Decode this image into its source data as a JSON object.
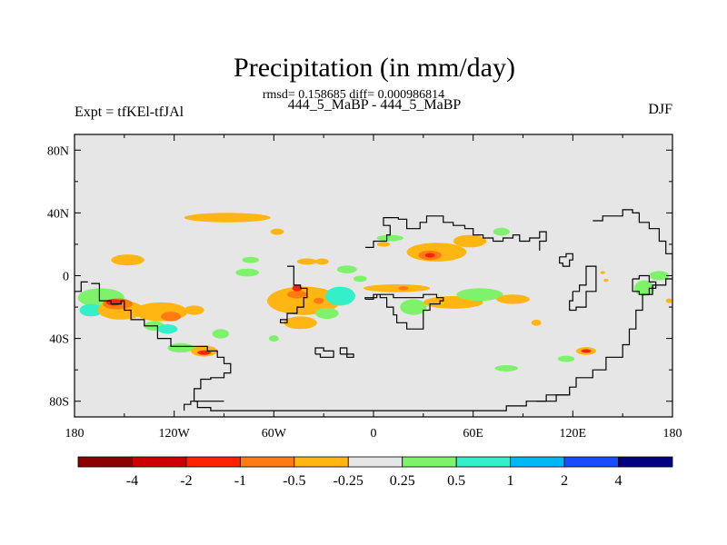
{
  "chart_data": {
    "type": "heatmap",
    "title": "Precipitation (in mm/day)",
    "stats_text": "rmsd= 0.158685 diff= 0.000986814",
    "subtitle": "444_5_MaBP - 444_5_MaBP",
    "left_label": "Expt = tfKEl-tfJAl",
    "right_label": "DJF",
    "xlim": [
      -180,
      180
    ],
    "ylim": [
      -90,
      90
    ],
    "x_ticks": [
      {
        "value": -180,
        "label": "180"
      },
      {
        "value": -120,
        "label": "120W"
      },
      {
        "value": -60,
        "label": "60W"
      },
      {
        "value": 0,
        "label": "0"
      },
      {
        "value": 60,
        "label": "60E"
      },
      {
        "value": 120,
        "label": "120E"
      },
      {
        "value": 180,
        "label": "180"
      }
    ],
    "y_ticks": [
      {
        "value": 80,
        "label": "80N"
      },
      {
        "value": 40,
        "label": "40N"
      },
      {
        "value": 0,
        "label": "0"
      },
      {
        "value": -40,
        "label": "40S"
      },
      {
        "value": -80,
        "label": "80S"
      }
    ],
    "colorbar": {
      "colors": [
        "#8b0000",
        "#cc0000",
        "#ff2200",
        "#ff7a10",
        "#ffb612",
        "#e6e6e6",
        "#7ff26b",
        "#33f0c8",
        "#00b8f5",
        "#1a4cff",
        "#000080"
      ],
      "labels": [
        "-4",
        "-2",
        "-1",
        "-0.5",
        "-0.25",
        "0.25",
        "0.5",
        "1",
        "2",
        "4"
      ]
    },
    "coastlines": [
      [
        [
          -170,
          -5
        ],
        [
          -165,
          -10
        ],
        [
          -165,
          -16
        ],
        [
          -158,
          -18
        ],
        [
          -152,
          -16
        ],
        [
          -150,
          -22
        ],
        [
          -146,
          -28
        ],
        [
          -138,
          -32
        ],
        [
          -130,
          -40
        ],
        [
          -122,
          -45
        ],
        [
          -112,
          -45
        ],
        [
          -104,
          -45
        ],
        [
          -100,
          -48
        ],
        [
          -94,
          -52
        ],
        [
          -90,
          -56
        ],
        [
          -86,
          -58
        ],
        [
          -86,
          -62
        ],
        [
          -90,
          -65
        ],
        [
          -98,
          -66
        ],
        [
          -104,
          -72
        ],
        [
          -108,
          -74
        ],
        [
          -108,
          -80
        ],
        [
          -106,
          -84
        ],
        [
          -98,
          -86
        ],
        [
          -80,
          -86
        ],
        [
          -60,
          -86
        ],
        [
          -30,
          -86
        ],
        [
          0,
          -86
        ],
        [
          30,
          -86
        ],
        [
          60,
          -86
        ],
        [
          80,
          -83
        ],
        [
          92,
          -80
        ],
        [
          104,
          -76
        ],
        [
          118,
          -71
        ],
        [
          122,
          -65
        ],
        [
          132,
          -60
        ],
        [
          140,
          -52
        ],
        [
          150,
          -44
        ],
        [
          154,
          -34
        ],
        [
          158,
          -22
        ],
        [
          162,
          -12
        ],
        [
          168,
          -6
        ],
        [
          176,
          -2
        ],
        [
          180,
          -1
        ]
      ],
      [
        [
          -52,
          6
        ],
        [
          -48,
          2
        ],
        [
          -48,
          -6
        ],
        [
          -44,
          -8
        ],
        [
          -40,
          -8
        ],
        [
          -40,
          -14
        ],
        [
          -42,
          -20
        ],
        [
          -46,
          -24
        ],
        [
          -52,
          -28
        ],
        [
          -56,
          -30
        ],
        [
          -52,
          -28
        ]
      ],
      [
        [
          -5,
          -15
        ],
        [
          0,
          -12
        ],
        [
          4,
          -14
        ],
        [
          8,
          -20
        ],
        [
          12,
          -25
        ],
        [
          14,
          -30
        ],
        [
          20,
          -34
        ],
        [
          26,
          -34
        ],
        [
          30,
          -30
        ],
        [
          30,
          -22
        ],
        [
          34,
          -18
        ],
        [
          40,
          -16
        ],
        [
          42,
          -14
        ],
        [
          38,
          -12
        ],
        [
          30,
          -14
        ],
        [
          22,
          -14
        ],
        [
          12,
          -12
        ],
        [
          2,
          -14
        ],
        [
          -5,
          -15
        ]
      ],
      [
        [
          -5,
          18
        ],
        [
          0,
          22
        ],
        [
          8,
          26
        ],
        [
          10,
          32
        ],
        [
          6,
          37
        ],
        [
          15,
          36
        ],
        [
          20,
          30
        ],
        [
          28,
          34
        ],
        [
          32,
          38
        ],
        [
          38,
          38
        ],
        [
          42,
          34
        ],
        [
          48,
          32
        ],
        [
          55,
          30
        ],
        [
          60,
          26
        ],
        [
          66,
          24
        ],
        [
          72,
          22
        ],
        [
          78,
          24
        ],
        [
          84,
          26
        ],
        [
          88,
          22
        ],
        [
          94,
          24
        ],
        [
          100,
          28
        ],
        [
          104,
          26
        ],
        [
          104,
          22
        ],
        [
          100,
          16
        ]
      ],
      [
        [
          -35,
          -50
        ],
        [
          -32,
          -52
        ],
        [
          -26,
          -52
        ],
        [
          -24,
          -48
        ],
        [
          -30,
          -46
        ],
        [
          -35,
          -50
        ]
      ],
      [
        [
          -20,
          -50
        ],
        [
          -16,
          -52
        ],
        [
          -12,
          -50
        ],
        [
          -16,
          -46
        ],
        [
          -20,
          -50
        ]
      ],
      [
        [
          120,
          -10
        ],
        [
          124,
          -6
        ],
        [
          128,
          0
        ],
        [
          128,
          6
        ],
        [
          132,
          6
        ],
        [
          134,
          0
        ],
        [
          134,
          -10
        ],
        [
          128,
          -20
        ],
        [
          122,
          -22
        ],
        [
          118,
          -16
        ],
        [
          120,
          -10
        ]
      ],
      [
        [
          132,
          35
        ],
        [
          138,
          38
        ],
        [
          146,
          38
        ],
        [
          150,
          42
        ],
        [
          156,
          40
        ],
        [
          160,
          34
        ],
        [
          166,
          30
        ],
        [
          172,
          22
        ],
        [
          176,
          14
        ],
        [
          180,
          10
        ]
      ],
      [
        [
          112,
          12
        ],
        [
          116,
          14
        ],
        [
          120,
          10
        ],
        [
          118,
          6
        ],
        [
          114,
          8
        ],
        [
          112,
          12
        ]
      ],
      [
        [
          156,
          -2
        ],
        [
          160,
          0
        ],
        [
          166,
          -4
        ],
        [
          170,
          -8
        ],
        [
          166,
          -12
        ],
        [
          160,
          -10
        ],
        [
          156,
          -6
        ],
        [
          156,
          -2
        ]
      ],
      [
        [
          -90,
          -80
        ],
        [
          -100,
          -80
        ],
        [
          -110,
          -82
        ],
        [
          -114,
          -86
        ]
      ],
      [
        [
          -172,
          -4
        ],
        [
          -176,
          -10
        ],
        [
          -180,
          -12
        ]
      ],
      [
        [
          98,
          -80
        ],
        [
          110,
          -76
        ],
        [
          118,
          -74
        ]
      ]
    ],
    "regions": [
      {
        "c": 4,
        "x": -148,
        "y": 10,
        "rx": 10,
        "ry": 3.5
      },
      {
        "c": 6,
        "x": -74,
        "y": 10,
        "rx": 5,
        "ry": 2
      },
      {
        "c": 6,
        "x": -76,
        "y": 2,
        "rx": 7,
        "ry": 2.5
      },
      {
        "c": 4,
        "x": -58,
        "y": 28,
        "rx": 4,
        "ry": 2
      },
      {
        "c": 4,
        "x": -88,
        "y": 37,
        "rx": 26,
        "ry": 3
      },
      {
        "c": 4,
        "x": -40,
        "y": 9,
        "rx": 6,
        "ry": 2
      },
      {
        "c": 4,
        "x": -31,
        "y": 9,
        "rx": 4,
        "ry": 2
      },
      {
        "c": 6,
        "x": -16,
        "y": 4,
        "rx": 6,
        "ry": 2.5
      },
      {
        "c": 6,
        "x": -8,
        "y": -2,
        "rx": 4,
        "ry": 2
      },
      {
        "c": 6,
        "x": -164,
        "y": -14,
        "rx": 14,
        "ry": 6
      },
      {
        "c": 7,
        "x": -170,
        "y": -22,
        "rx": 7,
        "ry": 4
      },
      {
        "c": 4,
        "x": -152,
        "y": -22,
        "rx": 14,
        "ry": 6
      },
      {
        "c": 3,
        "x": -154,
        "y": -18,
        "rx": 9,
        "ry": 3.5
      },
      {
        "c": 2,
        "x": -156,
        "y": -17,
        "rx": 5,
        "ry": 2
      },
      {
        "c": 4,
        "x": -128,
        "y": -23,
        "rx": 16,
        "ry": 6
      },
      {
        "c": 3,
        "x": -122,
        "y": -26,
        "rx": 6,
        "ry": 3
      },
      {
        "c": 4,
        "x": -108,
        "y": -22,
        "rx": 6,
        "ry": 3
      },
      {
        "c": 6,
        "x": -132,
        "y": -32,
        "rx": 6,
        "ry": 3
      },
      {
        "c": 7,
        "x": -124,
        "y": -34,
        "rx": 6,
        "ry": 3
      },
      {
        "c": 6,
        "x": -116,
        "y": -46,
        "rx": 8,
        "ry": 3
      },
      {
        "c": 6,
        "x": -92,
        "y": -37,
        "rx": 5,
        "ry": 3
      },
      {
        "c": 4,
        "x": -102,
        "y": -48,
        "rx": 8,
        "ry": 3.5
      },
      {
        "c": 2,
        "x": -102,
        "y": -49,
        "rx": 4,
        "ry": 1.5
      },
      {
        "c": 6,
        "x": -60,
        "y": -40,
        "rx": 3,
        "ry": 2
      },
      {
        "c": 4,
        "x": -42,
        "y": -16,
        "rx": 22,
        "ry": 9
      },
      {
        "c": 3,
        "x": -46,
        "y": -12,
        "rx": 6,
        "ry": 2.5
      },
      {
        "c": 2,
        "x": -46,
        "y": -8,
        "rx": 3,
        "ry": 2
      },
      {
        "c": 4,
        "x": -44,
        "y": -30,
        "rx": 10,
        "ry": 4
      },
      {
        "c": 7,
        "x": -20,
        "y": -13,
        "rx": 9,
        "ry": 6
      },
      {
        "c": 6,
        "x": -28,
        "y": -24,
        "rx": 7,
        "ry": 3.5
      },
      {
        "c": 3,
        "x": -33,
        "y": -16,
        "rx": 3,
        "ry": 2
      },
      {
        "c": 4,
        "x": 14,
        "y": -8,
        "rx": 20,
        "ry": 2.5
      },
      {
        "c": 3,
        "x": 18,
        "y": -8,
        "rx": 3,
        "ry": 1.3
      },
      {
        "c": 6,
        "x": 24,
        "y": -20,
        "rx": 8,
        "ry": 5
      },
      {
        "c": 4,
        "x": 48,
        "y": -17,
        "rx": 18,
        "ry": 4
      },
      {
        "c": 6,
        "x": 64,
        "y": -12,
        "rx": 14,
        "ry": 4
      },
      {
        "c": 4,
        "x": 84,
        "y": -15,
        "rx": 10,
        "ry": 3
      },
      {
        "c": 4,
        "x": 98,
        "y": -30,
        "rx": 3,
        "ry": 2
      },
      {
        "c": 4,
        "x": 38,
        "y": 15,
        "rx": 18,
        "ry": 6
      },
      {
        "c": 3,
        "x": 34,
        "y": 13,
        "rx": 7,
        "ry": 3
      },
      {
        "c": 2,
        "x": 34,
        "y": 13,
        "rx": 3,
        "ry": 1.5
      },
      {
        "c": 4,
        "x": 58,
        "y": 22,
        "rx": 10,
        "ry": 4
      },
      {
        "c": 6,
        "x": 77,
        "y": 28,
        "rx": 5,
        "ry": 2.5
      },
      {
        "c": 6,
        "x": 10,
        "y": 24,
        "rx": 8,
        "ry": 2
      },
      {
        "c": 4,
        "x": 6,
        "y": 20,
        "rx": 4,
        "ry": 1.5
      },
      {
        "c": 6,
        "x": 80,
        "y": -59,
        "rx": 7,
        "ry": 2
      },
      {
        "c": 6,
        "x": 116,
        "y": -53,
        "rx": 5,
        "ry": 2
      },
      {
        "c": 4,
        "x": 128,
        "y": -48,
        "rx": 6,
        "ry": 2.5
      },
      {
        "c": 2,
        "x": 128,
        "y": -48,
        "rx": 3,
        "ry": 1.2
      },
      {
        "c": 6,
        "x": 163,
        "y": -8,
        "rx": 6,
        "ry": 5
      },
      {
        "c": 6,
        "x": 172,
        "y": 0,
        "rx": 6,
        "ry": 3
      },
      {
        "c": 4,
        "x": 178,
        "y": -16,
        "rx": 2,
        "ry": 1.5
      },
      {
        "c": 4,
        "x": 138,
        "y": 2,
        "rx": 1.5,
        "ry": 1
      },
      {
        "c": 4,
        "x": 140,
        "y": -3,
        "rx": 1.5,
        "ry": 1
      }
    ]
  }
}
